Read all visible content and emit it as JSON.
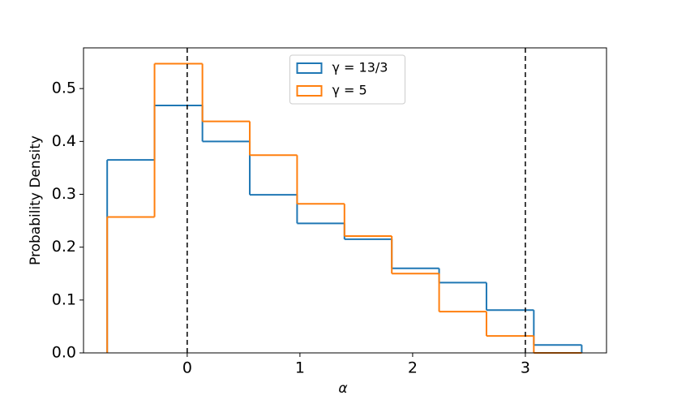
{
  "chart_data": {
    "type": "histogram",
    "x_label": "α",
    "y_label": "Probability Density",
    "bins": [
      -0.71,
      -0.29,
      0.135,
      0.555,
      0.975,
      1.395,
      1.815,
      2.235,
      2.655,
      3.075,
      3.5
    ],
    "series": [
      {
        "name": "γ = 13/3",
        "color": "#1f77b4",
        "values": [
          0.365,
          0.468,
          0.4,
          0.299,
          0.245,
          0.215,
          0.16,
          0.133,
          0.081,
          0.015
        ]
      },
      {
        "name": "γ = 5",
        "color": "#ff7f0e",
        "values": [
          0.257,
          0.547,
          0.438,
          0.374,
          0.282,
          0.221,
          0.15,
          0.078,
          0.032,
          0
        ]
      }
    ],
    "vlines": [
      0,
      3
    ],
    "xlim": [
      -0.92,
      3.72
    ],
    "ylim": [
      0,
      0.577
    ],
    "xticks": [
      0,
      1,
      2,
      3
    ],
    "yticks": [
      {
        "value": 0,
        "label": "0.0"
      },
      0.1,
      0.2,
      0.3,
      0.4,
      0.5
    ],
    "legend": "upper center",
    "grid": false
  }
}
